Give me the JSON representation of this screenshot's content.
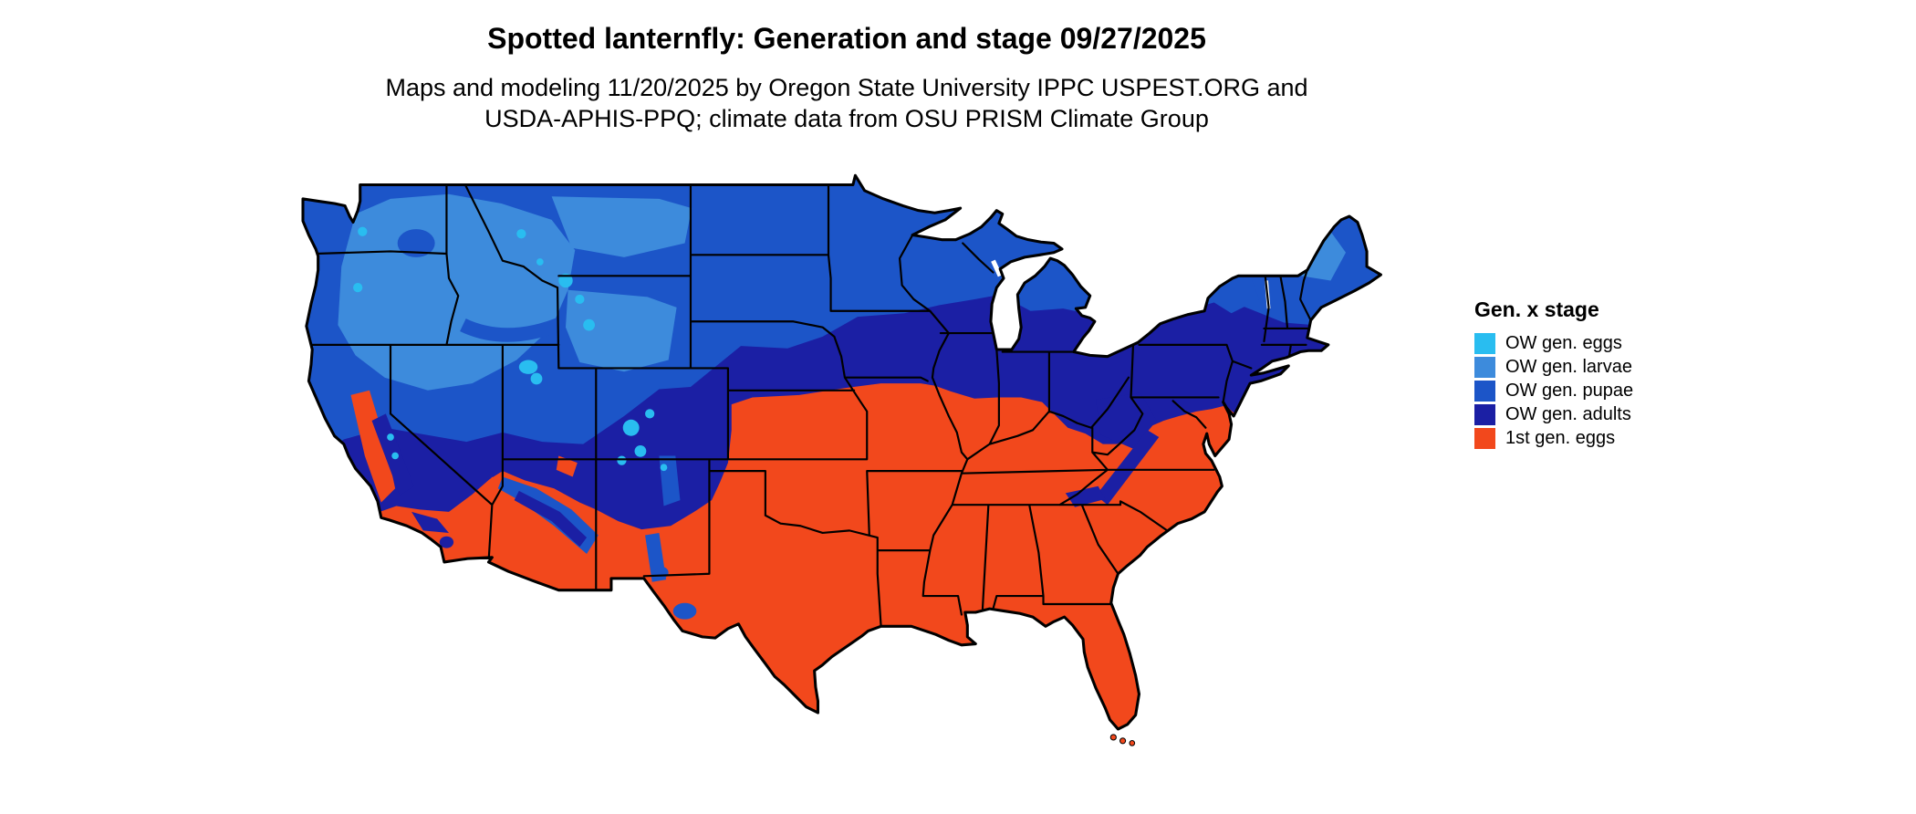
{
  "title": "Spotted lanternfly: Generation and stage 09/27/2025",
  "subtitle_line1": "Maps and modeling 11/20/2025 by Oregon State University IPPC USPEST.ORG and",
  "subtitle_line2": "USDA-APHIS-PPQ; climate data from OSU PRISM Climate Group",
  "legend": {
    "title": "Gen. x stage",
    "items": [
      {
        "label": "OW gen. eggs",
        "color": "#29BDF0"
      },
      {
        "label": "OW gen. larvae",
        "color": "#3D8BDC"
      },
      {
        "label": "OW gen. pupae",
        "color": "#1C55C8"
      },
      {
        "label": "OW gen. adults",
        "color": "#1B1FA4"
      },
      {
        "label": "1st gen. eggs",
        "color": "#F2481C"
      }
    ]
  }
}
